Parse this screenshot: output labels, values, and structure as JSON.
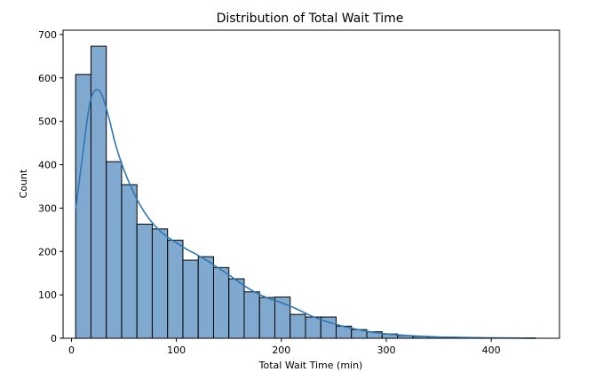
{
  "chart_data": {
    "type": "bar",
    "subtype": "histogram",
    "title": "Distribution of Total Wait Time",
    "xlabel": "Total Wait Time (min)",
    "ylabel": "Count",
    "xlim": [
      -8,
      465
    ],
    "ylim": [
      0,
      710
    ],
    "xticks": [
      0,
      100,
      200,
      300,
      400
    ],
    "yticks": [
      0,
      100,
      200,
      300,
      400,
      500,
      600,
      700
    ],
    "grid": false,
    "bin_edges": [
      4,
      18.6,
      33.2,
      47.8,
      62.4,
      77,
      91.6,
      106.2,
      120.8,
      135.4,
      150,
      164.6,
      179.2,
      193.8,
      208.4,
      223,
      237.6,
      252.2,
      266.8,
      281.4,
      296,
      310.6,
      325.2,
      339.8,
      354.4,
      369,
      383.6,
      398.2,
      412.8,
      427.4,
      442
    ],
    "counts": [
      608,
      673,
      407,
      354,
      263,
      252,
      226,
      180,
      188,
      163,
      137,
      107,
      94,
      95,
      55,
      49,
      49,
      28,
      20,
      15,
      10,
      6,
      4,
      3,
      2,
      2,
      1,
      1,
      1,
      1
    ],
    "kde": {
      "x": [
        4,
        10,
        16,
        20,
        25,
        30,
        36,
        42,
        50,
        60,
        70,
        80,
        90,
        100,
        110,
        120,
        130,
        140,
        150,
        160,
        170,
        180,
        190,
        200,
        215,
        230,
        245,
        260,
        275,
        290,
        310,
        330,
        350,
        370,
        400,
        442
      ],
      "y": [
        298,
        410,
        520,
        562,
        573,
        555,
        505,
        447,
        388,
        332,
        289,
        258,
        236,
        220,
        205,
        192,
        178,
        162,
        146,
        129,
        113,
        100,
        90,
        82,
        67,
        50,
        37,
        27,
        19,
        13,
        8,
        5,
        3,
        2,
        1,
        0
      ]
    },
    "colors": {
      "bar_fill": "#7fa9cf",
      "bar_edge": "#000000",
      "kde_line": "#2f77b4"
    }
  }
}
